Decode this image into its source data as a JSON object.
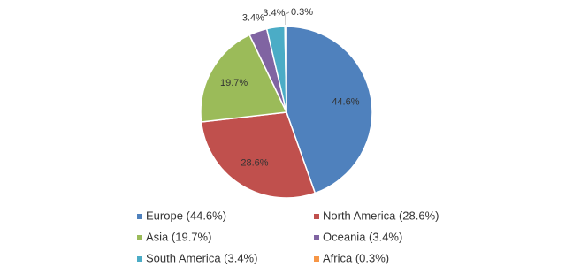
{
  "chart_data": {
    "type": "pie",
    "categories": [
      "Europe",
      "North America",
      "Asia",
      "Oceania",
      "South America",
      "Africa"
    ],
    "values": [
      44.6,
      28.6,
      19.7,
      3.4,
      3.4,
      0.3
    ],
    "value_labels": [
      "44.6%",
      "28.6%",
      "19.7%",
      "3.4%",
      "3.4%",
      "0.3%"
    ],
    "legend_labels": [
      "Europe (44.6%)",
      "North America (28.6%)",
      "Asia (19.7%)",
      "Oceania (3.4%)",
      "South America (3.4%)",
      "Africa (0.3%)"
    ],
    "colors": [
      "#4f81bd",
      "#c0504d",
      "#9bbb59",
      "#8064a2",
      "#4bacc6",
      "#f79646"
    ],
    "legend": "bottom"
  }
}
